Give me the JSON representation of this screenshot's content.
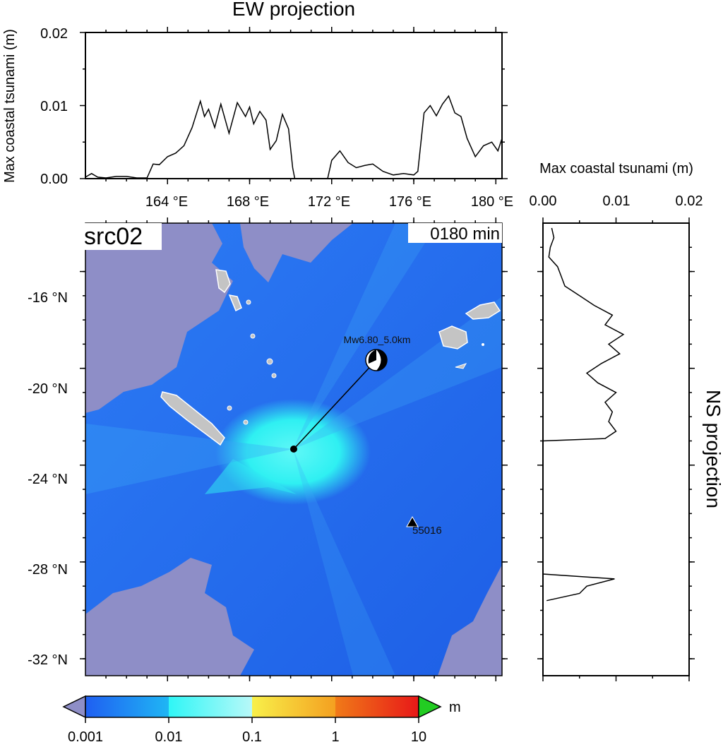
{
  "top_panel": {
    "title": "EW projection",
    "ylabel": "Max coastal tsunami (m)",
    "y_ticks": [
      "0.00",
      "0.01",
      "0.02"
    ],
    "x_ticks": [
      "164 °E",
      "168 °E",
      "172 °E",
      "176 °E",
      "180 °E"
    ]
  },
  "side_panel": {
    "title": "NS projection",
    "xlabel": "Max coastal tsunami (m)",
    "x_ticks": [
      "0.00",
      "0.01",
      "0.02"
    ]
  },
  "map": {
    "source_label": "src02",
    "time_label": "0180 min",
    "y_ticks": [
      "-16 °N",
      "-20 °N",
      "-24 °N",
      "-28 °N",
      "-32 °N"
    ],
    "event_label": "Mw6.80_5.0km",
    "station_label": "55016",
    "colors": {
      "land": "#8e8ec7",
      "ocean_base": "#2a74f2",
      "ocean_deep": "#1e60e8",
      "high_zone": "#2ff2f2",
      "island": "#c4c4c4"
    }
  },
  "colorbar": {
    "unit": "m",
    "labels": [
      "0.001",
      "0.01",
      "0.1",
      "1",
      "10"
    ],
    "colors": [
      "#1f60f0",
      "#2ef6f6",
      "#f6f04a",
      "#e84010",
      "#22cc22",
      "#8e8ec7"
    ]
  },
  "chart_data": {
    "type": "line",
    "series": [
      {
        "panel": "EW projection",
        "x_unit": "°E",
        "y_unit": "m",
        "xlim": [
          160.0,
          180.3
        ],
        "ylim": [
          0,
          0.02
        ],
        "x": [
          160.0,
          160.3,
          160.6,
          161.0,
          161.5,
          162.0,
          162.5,
          163.0,
          163.3,
          163.6,
          164.0,
          164.4,
          164.8,
          165.2,
          165.6,
          165.8,
          166.0,
          166.3,
          166.6,
          167.0,
          167.4,
          167.8,
          168.0,
          168.2,
          168.5,
          168.8,
          169.0,
          169.3,
          169.6,
          169.9,
          170.1,
          170.2,
          171.8,
          172.0,
          172.4,
          172.8,
          173.2,
          173.6,
          174.0,
          174.5,
          175.0,
          175.5,
          176.0,
          176.2,
          176.5,
          176.8,
          177.1,
          177.4,
          177.7,
          178.0,
          178.3,
          178.6,
          179.0,
          179.4,
          179.8,
          180.1,
          180.3
        ],
        "y": [
          0.0002,
          0.0007,
          0.0002,
          0.0001,
          0.0003,
          0.0003,
          0.0001,
          0.0001,
          0.002,
          0.0019,
          0.003,
          0.0035,
          0.0045,
          0.007,
          0.0106,
          0.0085,
          0.0095,
          0.007,
          0.0102,
          0.0062,
          0.0104,
          0.0085,
          0.0098,
          0.0075,
          0.0092,
          0.008,
          0.004,
          0.0052,
          0.0088,
          0.0068,
          0.0015,
          0.0,
          0.0,
          0.0025,
          0.0038,
          0.0022,
          0.0015,
          0.0018,
          0.002,
          0.001,
          0.0005,
          0.0007,
          0.0005,
          0.001,
          0.009,
          0.01,
          0.0086,
          0.0102,
          0.0113,
          0.009,
          0.0085,
          0.0055,
          0.003,
          0.0045,
          0.005,
          0.0038,
          0.0055
        ]
      },
      {
        "panel": "NS projection",
        "x_unit": "m",
        "y_unit": "°N",
        "xlim": [
          0,
          0.02
        ],
        "ylim": [
          -32.7,
          -14.0
        ],
        "lat": [
          -14.2,
          -14.6,
          -15.0,
          -15.4,
          -15.8,
          -16.2,
          -16.6,
          -17.0,
          -17.4,
          -17.8,
          -18.2,
          -18.6,
          -19.0,
          -19.4,
          -19.8,
          -20.2,
          -20.6,
          -21.0,
          -21.4,
          -21.8,
          -22.2,
          -22.6,
          -22.9,
          -23.0,
          -28.5,
          -28.7,
          -29.0,
          -29.3,
          -29.6
        ],
        "values": [
          0.0012,
          0.0015,
          0.001,
          0.0008,
          0.002,
          0.0025,
          0.003,
          0.005,
          0.007,
          0.0095,
          0.0085,
          0.011,
          0.009,
          0.0105,
          0.008,
          0.006,
          0.0075,
          0.01,
          0.0085,
          0.0095,
          0.009,
          0.01,
          0.0085,
          0.0,
          0.0,
          0.0098,
          0.006,
          0.005,
          0.0005
        ]
      }
    ]
  }
}
